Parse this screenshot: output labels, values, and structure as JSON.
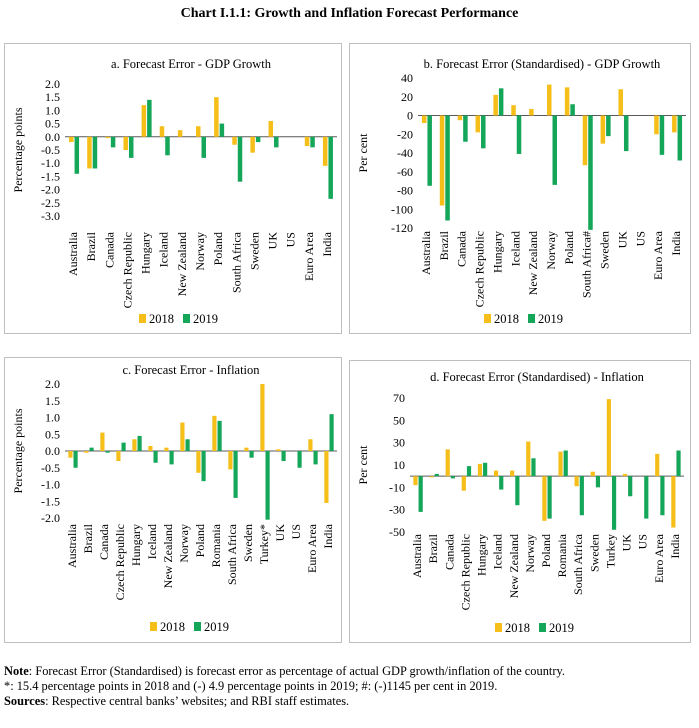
{
  "page": {
    "title": "Chart I.1.1: Growth and Inflation Forecast Performance"
  },
  "colors": {
    "s2018": "#f5be18",
    "s2019": "#14a659",
    "axis": "#595959"
  },
  "chart_data": [
    {
      "id": "a",
      "type": "bar",
      "title": "a. Forecast Error - GDP Growth",
      "ylabel": "Percentage points",
      "xlabel": "",
      "ylim": [
        -3.0,
        2.0
      ],
      "yticks": [
        "2.0",
        "1.5",
        "1.0",
        "0.5",
        "0.0",
        "-0.5",
        "-1.0",
        "-1.5",
        "-2.0",
        "-2.5",
        "-3.0"
      ],
      "categories": [
        "Australia",
        "Brazil",
        "Canada",
        "Czech Republic",
        "Hungary",
        "Iceland",
        "New Zealand",
        "Norway",
        "Poland",
        "South Africa",
        "Sweden",
        "UK",
        "US",
        "Euro Area",
        "India"
      ],
      "series": [
        {
          "name": "2018",
          "values": [
            -0.2,
            -1.2,
            -0.05,
            -0.5,
            1.2,
            0.4,
            0.25,
            0.4,
            1.5,
            -0.3,
            -0.6,
            0.6,
            0.0,
            -0.35,
            -1.1
          ]
        },
        {
          "name": "2019",
          "values": [
            -1.4,
            -1.2,
            -0.4,
            -0.8,
            1.4,
            -0.7,
            0.0,
            -0.8,
            0.5,
            -1.7,
            -0.2,
            -0.4,
            0.0,
            -0.4,
            -2.35
          ]
        }
      ],
      "legend": [
        "2018",
        "2019"
      ]
    },
    {
      "id": "b",
      "type": "bar",
      "title": "b. Forecast Error (Standardised) - GDP Growth",
      "ylabel": "Per cent",
      "xlabel": "",
      "ylim": [
        -120,
        40
      ],
      "yticks": [
        "40",
        "20",
        "0",
        "-20",
        "-40",
        "-60",
        "-80",
        "-100",
        "-120"
      ],
      "categories": [
        "Australia",
        "Brazil",
        "Canada",
        "Czech Republic",
        "Hungary",
        "Iceland",
        "New Zealand",
        "Norway",
        "Poland",
        "South Africa#",
        "Sweden",
        "UK",
        "US",
        "Euro Area",
        "India"
      ],
      "series": [
        {
          "name": "2018",
          "values": [
            -8,
            -96,
            -5,
            -18,
            22,
            11,
            7,
            33,
            30,
            -53,
            -30,
            28,
            0,
            -20,
            -18
          ]
        },
        {
          "name": "2019",
          "values": [
            -75,
            -112,
            -28,
            -35,
            29,
            -41,
            0,
            -74,
            12,
            -122,
            -22,
            -38,
            0,
            -42,
            -48
          ]
        }
      ],
      "legend": [
        "2018",
        "2019"
      ]
    },
    {
      "id": "c",
      "type": "bar",
      "title": "c. Forecast Error - Inflation",
      "ylabel": "Percentage points",
      "xlabel": "",
      "ylim": [
        -2.0,
        2.0
      ],
      "yticks": [
        "2.0",
        "1.5",
        "1.0",
        "0.5",
        "0.0",
        "-0.5",
        "-1.0",
        "-1.5",
        "-2.0"
      ],
      "categories": [
        "Australia",
        "Brazil",
        "Canada",
        "Czech Republic",
        "Hungary",
        "Iceland",
        "New Zealand",
        "Norway",
        "Poland",
        "Romania",
        "South Africa",
        "Sweden",
        "Turkey*",
        "UK",
        "US",
        "Euro Area",
        "India"
      ],
      "series": [
        {
          "name": "2018",
          "values": [
            -0.2,
            -0.05,
            0.55,
            -0.3,
            0.35,
            0.15,
            0.1,
            0.85,
            -0.65,
            1.05,
            -0.55,
            0.1,
            2.0,
            0.05,
            0.0,
            0.35,
            -1.55
          ]
        },
        {
          "name": "2019",
          "values": [
            -0.5,
            0.1,
            -0.05,
            0.25,
            0.45,
            -0.35,
            -0.4,
            0.35,
            -0.9,
            0.9,
            -1.4,
            -0.2,
            -2.05,
            -0.3,
            -0.5,
            -0.4,
            1.1
          ]
        }
      ],
      "legend": [
        "2018",
        "2019"
      ]
    },
    {
      "id": "d",
      "type": "bar",
      "title": "d. Forecast Error (Standardised) - Inflation",
      "ylabel": "Per cent",
      "xlabel": "",
      "ylim": [
        -50,
        70
      ],
      "yticks": [
        "70",
        "50",
        "30",
        "10",
        "-10",
        "-30",
        "-50"
      ],
      "categories": [
        "Australia",
        "Brazil",
        "Canada",
        "Czech Republic",
        "Hungary",
        "Iceland",
        "New Zealand",
        "Norway",
        "Poland",
        "Romania",
        "South Africa",
        "Sweden",
        "Turkey",
        "UK",
        "US",
        "Euro Area",
        "India"
      ],
      "series": [
        {
          "name": "2018",
          "values": [
            -8,
            -1,
            24,
            -13,
            11,
            5,
            5,
            31,
            -40,
            22,
            -9,
            4,
            69,
            2,
            0,
            20,
            -46
          ]
        },
        {
          "name": "2019",
          "values": [
            -32,
            2,
            -2,
            9,
            12,
            -12,
            -26,
            16,
            -38,
            23,
            -35,
            -10,
            -48,
            -18,
            -38,
            -35,
            23
          ]
        }
      ],
      "legend": [
        "2018",
        "2019"
      ]
    }
  ],
  "notes": {
    "note_label": "Note",
    "note_text": ": Forecast Error (Standardised) is forecast error as percentage of actual GDP growth/inflation of the country.",
    "footnote": "*: 15.4 percentage points in 2018 and (-) 4.9 percentage points in 2019; #: (-)1145 per cent in 2019.",
    "sources_label": "Sources",
    "sources_text": ": Respective central banks’ websites; and RBI staff estimates."
  }
}
